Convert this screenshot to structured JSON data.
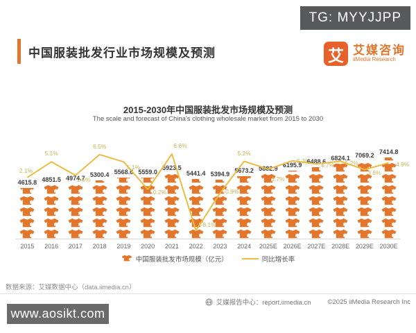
{
  "tg_badge": "TG: MYYJJPP",
  "header": {
    "title": "中国服装批发行业市场规模及预测",
    "logo": {
      "symbol": "艾",
      "name_cn": "艾媒咨询",
      "name_en": "iiMedia Research"
    }
  },
  "chart_data": {
    "type": "bar",
    "subtype": "pictograph-bar-with-line",
    "title": "2015-2030年中国服装批发市场规模及预测",
    "subtitle": "The scale and forecast of China's clothing wholesale market from 2015 to 2030",
    "categories": [
      "2015",
      "2016",
      "2017",
      "2018",
      "2019",
      "2020",
      "2021",
      "2022",
      "2023",
      "2024",
      "2025E",
      "2026E",
      "2027E",
      "2028E",
      "2029E",
      "2030E"
    ],
    "series": [
      {
        "name": "中国服装批发市场规模（亿元）",
        "type": "pictograph-bar",
        "values": [
          4615.8,
          4851.5,
          4974.7,
          5300.4,
          5568.6,
          5559.0,
          5923.5,
          5441.4,
          5394.9,
          5673.2,
          5882.9,
          6195.9,
          6488.6,
          6824.1,
          7069.2,
          7414.8
        ],
        "value_labels": [
          "4615.8",
          "4851.5",
          "4974.7",
          "5300.4",
          "5568.6",
          "5559.0",
          "5923.5",
          "5441.4",
          "5394.9",
          "5673.2",
          "5882.9",
          "6195.9",
          "6488.6",
          "6824.1",
          "7069.2",
          "7414.8"
        ],
        "color": "#e2762d"
      },
      {
        "name": "同比增长率",
        "type": "line",
        "values_pct": [
          2.1,
          5.1,
          2.5,
          6.5,
          5.1,
          -0.2,
          6.6,
          -8.1,
          -0.9,
          5.2,
          3.7,
          5.3,
          4.7,
          5.2,
          3.6,
          4.9
        ],
        "value_labels": [
          "2.1%",
          "5.1%",
          "2.5%",
          "6.5%",
          "5.1%",
          "-0.2%",
          "6.6%",
          "-8.1%",
          "-0.9%",
          "5.2%",
          "3.7%",
          "5.3%",
          "4.7%",
          "5.2%",
          "3.6%",
          "4.9%"
        ],
        "color": "#ebbc41"
      }
    ],
    "legend": [
      "中国服装批发市场规模（亿元）",
      "同比增长率"
    ],
    "legend_position": "bottom",
    "grid": false,
    "y_axis_visible": false
  },
  "colors": {
    "accent_orange": "#e2762d",
    "line_yellow": "#ebbc41",
    "pct_label": "#c4b455",
    "badge_gray": "#58595b",
    "watermark_gray": "#6a6a6a"
  },
  "footer": {
    "source": "数据来源：艾媒数据中心（data.iimedia.cn）",
    "report_center": "艾媒报告中心：report.iimedia.cn",
    "copyright": "©2025  iiMedia Research  Inc"
  },
  "watermark_site": "www.aosikt.com"
}
